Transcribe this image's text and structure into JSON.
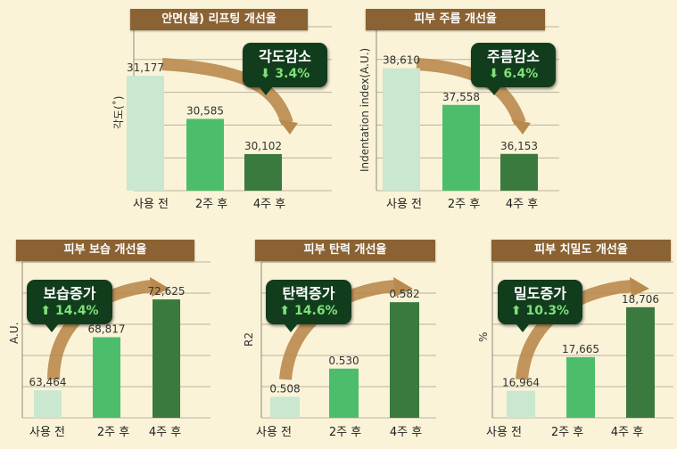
{
  "colors": {
    "bar_before": "#c9e8cf",
    "bar_2w": "#4cbd6b",
    "bar_4w": "#3a7a3e",
    "title_bg": "#8a6233",
    "arrow": "#b98a4e",
    "callout_bg": "#123d1d",
    "grid": "#b9b3a0",
    "background": "#faf3d8"
  },
  "chart_data": [
    {
      "type": "bar",
      "title": "안면(볼) 리프팅 개선율",
      "ylabel": "각도(˚)",
      "categories": [
        "사용 전",
        "2주 후",
        "4주 후"
      ],
      "values": [
        31.177,
        30.585,
        30.102
      ],
      "value_labels": [
        "31,177",
        "30,585",
        "30,102"
      ],
      "ylim": [
        29.6,
        31.85
      ],
      "grid": true,
      "callout": {
        "title": "각도감소",
        "percent": "3.4%",
        "direction": "down"
      }
    },
    {
      "type": "bar",
      "title": "피부 주름 개선율",
      "ylabel": "Indentation index(A.U.)",
      "categories": [
        "사용 전",
        "2주 후",
        "4주 후"
      ],
      "values": [
        38.61,
        37.558,
        36.153
      ],
      "value_labels": [
        "38,610",
        "37,558",
        "36,153"
      ],
      "ylim": [
        35.1,
        39.8
      ],
      "grid": true,
      "callout": {
        "title": "주름감소",
        "percent": "6.4%",
        "direction": "down"
      }
    },
    {
      "type": "bar",
      "title": "피부 보습 개선율",
      "ylabel": "A.U.",
      "categories": [
        "사용 전",
        "2주 후",
        "4주 후"
      ],
      "values": [
        63.464,
        68.817,
        72.625
      ],
      "value_labels": [
        "63,464",
        "68,817",
        "72,625"
      ],
      "ylim": [
        60.7,
        76.4
      ],
      "grid": true,
      "callout": {
        "title": "보습증가",
        "percent": "14.4%",
        "direction": "up"
      }
    },
    {
      "type": "bar",
      "title": "피부 탄력 개선율",
      "ylabel": "R2",
      "categories": [
        "사용 전",
        "2주 후",
        "4주 후"
      ],
      "values": [
        0.508,
        0.53,
        0.582
      ],
      "value_labels": [
        "0.508",
        "0.530",
        "0.582"
      ],
      "ylim": [
        0.4915,
        0.6135
      ],
      "grid": true,
      "callout": {
        "title": "탄력증가",
        "percent": "14.6%",
        "direction": "up"
      }
    },
    {
      "type": "bar",
      "title": "피부 치밀도 개선율",
      "ylabel": "%",
      "categories": [
        "사용 전",
        "2주 후",
        "4주 후"
      ],
      "values": [
        16.964,
        17.665,
        18.706
      ],
      "value_labels": [
        "16,964",
        "17,665",
        "18,706"
      ],
      "ylim": [
        16.4,
        19.65
      ],
      "grid": true,
      "callout": {
        "title": "밀도증가",
        "percent": "10.3%",
        "direction": "up"
      }
    }
  ]
}
